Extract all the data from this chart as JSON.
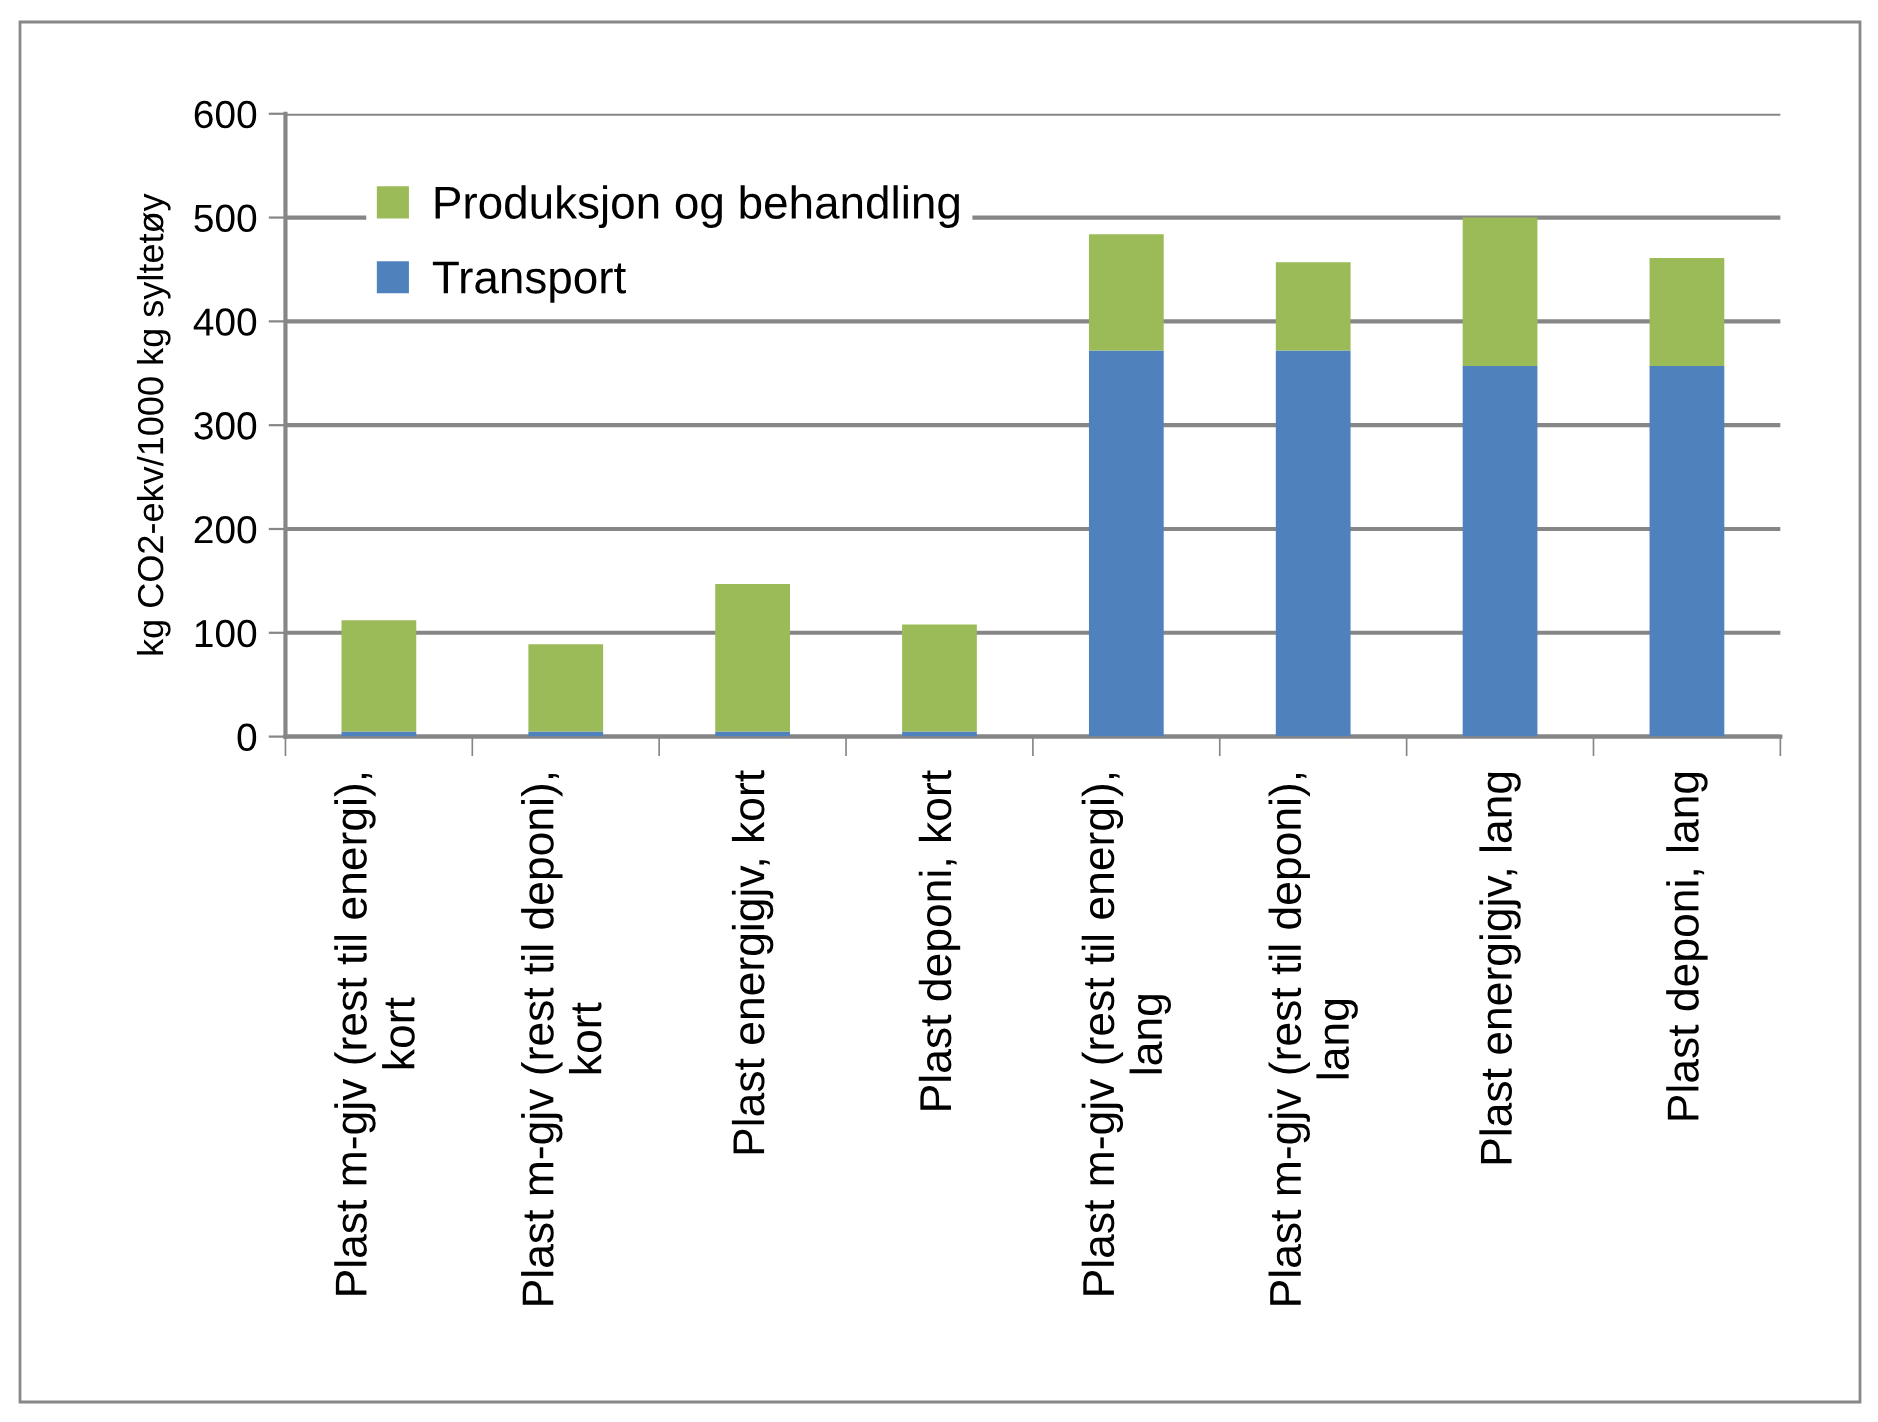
{
  "chart_data": {
    "type": "bar",
    "stacked": true,
    "ylabel": "kg CO2-ekv/1000 kg syltetøy",
    "categories": [
      "Plast m-gjv (rest til energi),\nkort",
      "Plast m-gjv (rest til deponi),\nkort",
      "Plast energigjv, kort",
      "Plast deponi, kort",
      "Plast m-gjv (rest til energi),\nlang",
      "Plast m-gjv (rest til deponi),\nlang",
      "Plast energigjv, lang",
      "Plast deponi, lang"
    ],
    "series": [
      {
        "name": "Transport",
        "color": "#4f81bd",
        "values": [
          5,
          5,
          5,
          5,
          372,
          372,
          357,
          357
        ]
      },
      {
        "name": "Produksjon og behandling",
        "color": "#9bbb59",
        "values": [
          107,
          84,
          142,
          103,
          112,
          85,
          143,
          104
        ]
      }
    ],
    "ylim": [
      0,
      600
    ],
    "yticks": [
      0,
      100,
      200,
      300,
      400,
      500,
      600
    ],
    "grid": "y",
    "legend": "top left"
  }
}
